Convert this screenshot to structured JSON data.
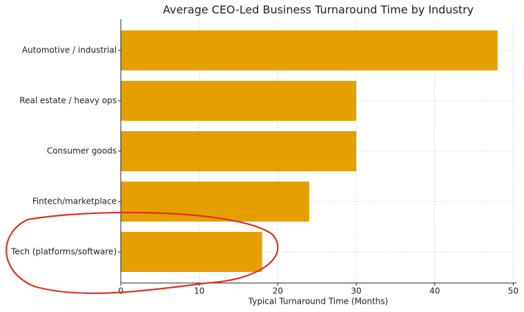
{
  "chart_data": {
    "type": "bar",
    "orientation": "horizontal",
    "title": "Average CEO-Led Business Turnaround Time by Industry",
    "x_label": "Typical Turnaround Time (Months)",
    "categories": [
      "Automotive / industrial",
      "Real estate / heavy ops",
      "Consumer goods",
      "Fintech/marketplace",
      "Tech (platforms/software)"
    ],
    "values": [
      48,
      30,
      30,
      24,
      18
    ],
    "color": "#e5a000",
    "xlim": [
      0,
      50.4
    ],
    "xticks": [
      0,
      10,
      20,
      30,
      40,
      50
    ],
    "grid": true
  }
}
